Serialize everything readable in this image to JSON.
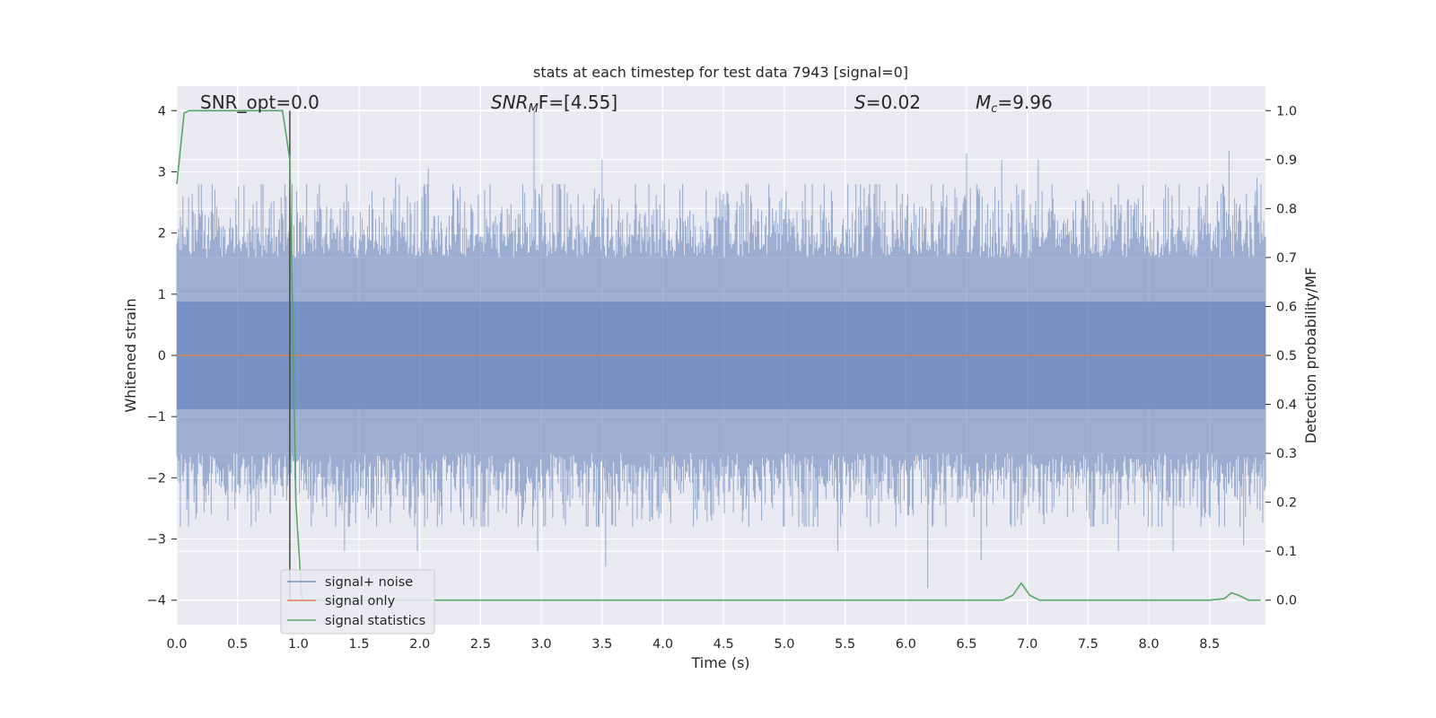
{
  "chart_data": {
    "type": "line",
    "title": "stats at each timestep for test data 7943 [signal=0]",
    "xlabel": "Time (s)",
    "ylabel_left": "Whitened strain",
    "ylabel_right": "Detection probability/MF",
    "xlim": [
      0.0,
      8.96
    ],
    "ylim_left": [
      -4.4,
      4.4
    ],
    "ylim_right": [
      -0.05,
      1.05
    ],
    "xticks": [
      "0.0",
      "0.5",
      "1.0",
      "1.5",
      "2.0",
      "2.5",
      "3.0",
      "3.5",
      "4.0",
      "4.5",
      "5.0",
      "5.5",
      "6.0",
      "6.5",
      "7.0",
      "7.5",
      "8.0",
      "8.5"
    ],
    "yticks_left": [
      "−4",
      "−3",
      "−2",
      "−1",
      "0",
      "1",
      "2",
      "3",
      "4"
    ],
    "yticks_right": [
      "0.0",
      "0.1",
      "0.2",
      "0.3",
      "0.4",
      "0.5",
      "0.6",
      "0.7",
      "0.8",
      "0.9",
      "1.0"
    ],
    "grid": true,
    "background": "#eaeaf2",
    "legend_position": "lower-left",
    "annotations": {
      "snr_opt": "SNR_opt=0.0",
      "snr_mf_main": "SNR",
      "snr_mf_sub": "M",
      "snr_mf_tail": "F=[4.55]",
      "s_main": "S",
      "s_tail": "=0.02",
      "mc_main": "M",
      "mc_sub": "c",
      "mc_tail": "=9.96"
    },
    "marker_line_x": 0.93,
    "series": [
      {
        "name": "signal+ noise",
        "color": "#4c72b0",
        "alpha": 0.5,
        "axis": "left",
        "envelope_typical": 1.6,
        "extremes": [
          {
            "x": 0.03,
            "y": -2.8
          },
          {
            "x": 0.05,
            "y": 2.6
          },
          {
            "x": 0.42,
            "y": -2.7
          },
          {
            "x": 0.9,
            "y": 2.6
          },
          {
            "x": 1.38,
            "y": -3.2
          },
          {
            "x": 1.8,
            "y": 2.9
          },
          {
            "x": 1.98,
            "y": -3.2
          },
          {
            "x": 2.07,
            "y": 3.05
          },
          {
            "x": 2.94,
            "y": 4.0
          },
          {
            "x": 2.97,
            "y": -3.2
          },
          {
            "x": 3.5,
            "y": 3.2
          },
          {
            "x": 3.53,
            "y": -3.45
          },
          {
            "x": 5.44,
            "y": -3.2
          },
          {
            "x": 6.18,
            "y": -3.8
          },
          {
            "x": 6.5,
            "y": 3.3
          },
          {
            "x": 6.62,
            "y": -3.35
          },
          {
            "x": 6.79,
            "y": 3.2
          },
          {
            "x": 7.09,
            "y": 3.2
          },
          {
            "x": 7.75,
            "y": -3.2
          },
          {
            "x": 8.2,
            "y": -3.2
          },
          {
            "x": 8.66,
            "y": 3.35
          },
          {
            "x": 8.78,
            "y": -3.1
          },
          {
            "x": 8.89,
            "y": 2.9
          }
        ]
      },
      {
        "name": "signal only",
        "color": "#dd8452",
        "axis": "left",
        "x": [
          0.0,
          8.96
        ],
        "y": [
          0.0,
          0.0
        ]
      },
      {
        "name": "signal statistics",
        "color": "#55a868",
        "axis": "right",
        "x": [
          0.0,
          0.06,
          0.1,
          0.15,
          0.25,
          0.5,
          0.75,
          0.87,
          0.93,
          0.98,
          1.03,
          1.1,
          2.0,
          4.0,
          6.0,
          6.8,
          6.88,
          6.95,
          7.02,
          7.1,
          7.5,
          8.0,
          8.5,
          8.62,
          8.68,
          8.74,
          8.82,
          8.92
        ],
        "y": [
          0.85,
          0.995,
          1.0,
          1.0,
          1.0,
          1.0,
          1.0,
          1.0,
          0.9,
          0.2,
          0.0,
          0.0,
          0.0,
          0.0,
          0.0,
          0.0,
          0.01,
          0.035,
          0.01,
          0.0,
          0.0,
          0.0,
          0.0,
          0.003,
          0.015,
          0.01,
          0.0,
          0.0
        ]
      }
    ]
  }
}
